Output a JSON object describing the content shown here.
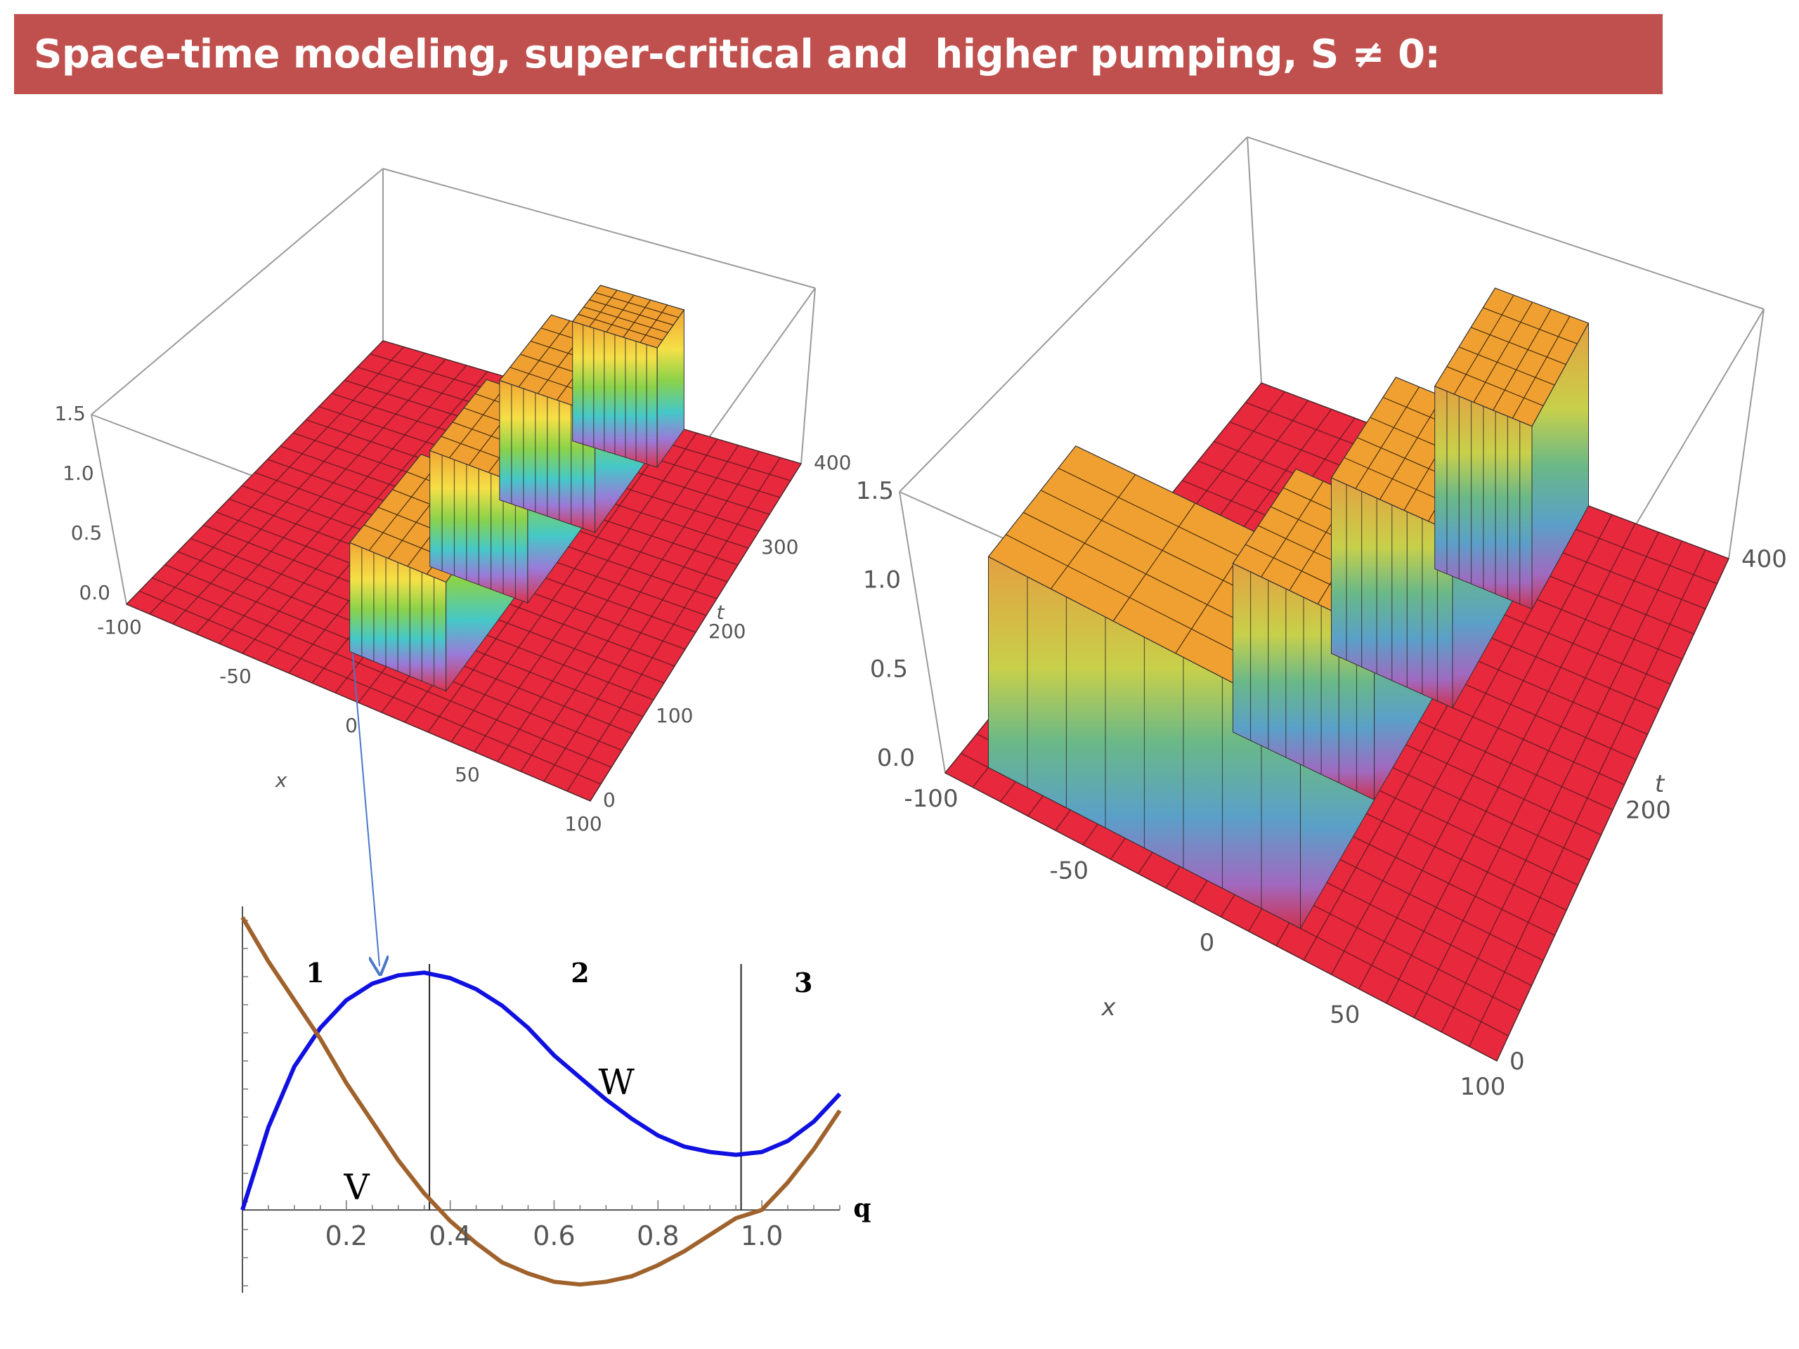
{
  "slide": {
    "title": "Space-time modeling, super-critical and  higher pumping, S ≠ 0:"
  },
  "colors": {
    "title_bar": "#c0504d",
    "floor": "#e8283c",
    "plateau": "#f0a030",
    "W_curve": "#1010e0",
    "V_curve": "#a0622d",
    "arrow": "#4a78c8"
  },
  "chart_data": [
    {
      "type": "surface3d",
      "panel": "left",
      "x_label": "x",
      "t_label": "t",
      "x_ticks": [
        "-100",
        "-50",
        "0",
        "50",
        "100"
      ],
      "t_ticks": [
        "0",
        "100",
        "200",
        "300",
        "400"
      ],
      "z_ticks": [
        "0.0",
        "0.5",
        "1.0",
        "1.5"
      ],
      "x_range": [
        -100,
        100
      ],
      "t_range": [
        0,
        400
      ],
      "z_range": [
        0,
        1.5
      ],
      "floor_level": 0.0,
      "plateau_level": 1.0
    },
    {
      "type": "surface3d",
      "panel": "right",
      "x_label": "x",
      "t_label": "t",
      "x_ticks": [
        "-100",
        "-50",
        "0",
        "50",
        "100"
      ],
      "t_ticks": [
        "0",
        "200",
        "400"
      ],
      "z_ticks": [
        "0.0",
        "0.5",
        "1.0",
        "1.5"
      ],
      "x_range": [
        -100,
        100
      ],
      "t_range": [
        0,
        450
      ],
      "z_range": [
        0,
        1.5
      ],
      "floor_level": 0.0,
      "plateau_level": 1.0
    },
    {
      "type": "line",
      "panel": "inset",
      "xlabel": "q",
      "x_ticks": [
        "0.2",
        "0.4",
        "0.6",
        "0.8",
        "1.0"
      ],
      "xlim": [
        0,
        1.15
      ],
      "ylim": [
        -0.15,
        0.55
      ],
      "series": [
        {
          "name": "W",
          "x": [
            0,
            0.05,
            0.1,
            0.15,
            0.2,
            0.25,
            0.3,
            0.35,
            0.4,
            0.45,
            0.5,
            0.55,
            0.6,
            0.65,
            0.7,
            0.75,
            0.8,
            0.85,
            0.9,
            0.95,
            1.0,
            1.05,
            1.1,
            1.15
          ],
          "y": [
            0,
            0.15,
            0.26,
            0.33,
            0.38,
            0.41,
            0.425,
            0.43,
            0.42,
            0.4,
            0.37,
            0.33,
            0.28,
            0.24,
            0.2,
            0.165,
            0.135,
            0.115,
            0.105,
            0.1,
            0.105,
            0.125,
            0.16,
            0.21
          ]
        },
        {
          "name": "V",
          "x": [
            0,
            0.05,
            0.1,
            0.15,
            0.2,
            0.25,
            0.3,
            0.35,
            0.4,
            0.45,
            0.5,
            0.55,
            0.6,
            0.65,
            0.7,
            0.75,
            0.8,
            0.85,
            0.9,
            0.95,
            1.0,
            1.05,
            1.1,
            1.15
          ],
          "y": [
            0.53,
            0.45,
            0.38,
            0.31,
            0.23,
            0.16,
            0.09,
            0.03,
            -0.02,
            -0.06,
            -0.095,
            -0.115,
            -0.13,
            -0.135,
            -0.13,
            -0.12,
            -0.1,
            -0.075,
            -0.045,
            -0.015,
            0.0,
            0.05,
            0.11,
            0.18
          ]
        }
      ],
      "vertical_lines": [
        0.36,
        0.96
      ],
      "regions": [
        "1",
        "2",
        "3"
      ]
    }
  ]
}
